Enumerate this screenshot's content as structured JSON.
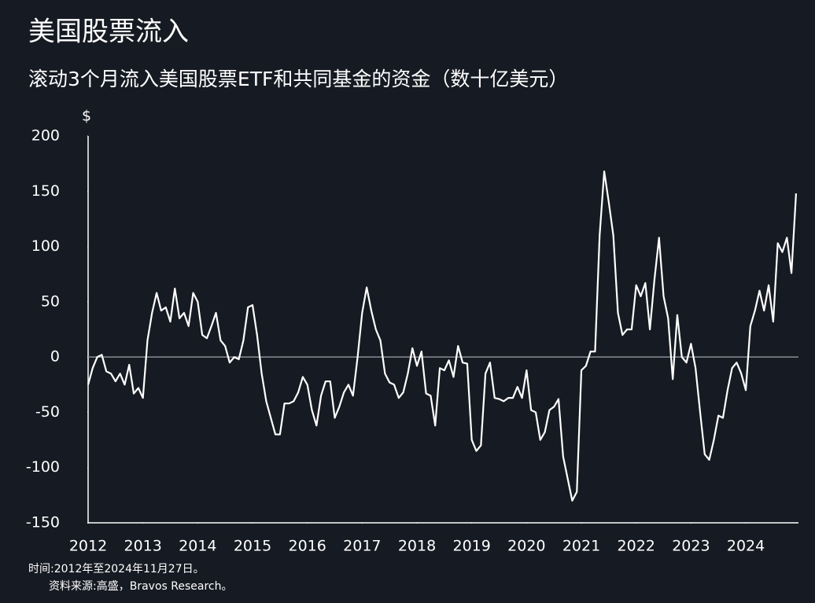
{
  "chart_data": {
    "type": "line",
    "title": "美国股票流入",
    "subtitle": "滚动3个月流入美国股票ETF和共同基金的资金（数十亿美元）",
    "y_label": "$",
    "notes": [
      "时间:2012年至2024年11月27日。",
      "资料来源:高盛，Bravos Research。"
    ],
    "xlim": [
      2012,
      2024.95
    ],
    "xticks": [
      2012,
      2013,
      2014,
      2015,
      2016,
      2017,
      2018,
      2019,
      2020,
      2021,
      2022,
      2023,
      2024
    ],
    "ylim": [
      -150,
      200
    ],
    "yticks": [
      -150,
      -100,
      -50,
      0,
      50,
      100,
      150,
      200
    ],
    "zero_line": true,
    "series": [
      {
        "color": "#ffffff",
        "x": [
          2012,
          2012.083,
          2012.167,
          2012.25,
          2012.333,
          2012.417,
          2012.5,
          2012.583,
          2012.667,
          2012.75,
          2012.833,
          2012.917,
          2013,
          2013.083,
          2013.167,
          2013.25,
          2013.333,
          2013.417,
          2013.5,
          2013.583,
          2013.667,
          2013.75,
          2013.833,
          2013.917,
          2014,
          2014.083,
          2014.167,
          2014.25,
          2014.333,
          2014.417,
          2014.5,
          2014.583,
          2014.667,
          2014.75,
          2014.833,
          2014.917,
          2015,
          2015.083,
          2015.167,
          2015.25,
          2015.333,
          2015.417,
          2015.5,
          2015.583,
          2015.667,
          2015.75,
          2015.833,
          2015.917,
          2016,
          2016.083,
          2016.167,
          2016.25,
          2016.333,
          2016.417,
          2016.5,
          2016.583,
          2016.667,
          2016.75,
          2016.833,
          2016.917,
          2017,
          2017.083,
          2017.167,
          2017.25,
          2017.333,
          2017.417,
          2017.5,
          2017.583,
          2017.667,
          2017.75,
          2017.833,
          2017.917,
          2018,
          2018.083,
          2018.167,
          2018.25,
          2018.333,
          2018.417,
          2018.5,
          2018.583,
          2018.667,
          2018.75,
          2018.833,
          2018.917,
          2019,
          2019.083,
          2019.167,
          2019.25,
          2019.333,
          2019.417,
          2019.5,
          2019.583,
          2019.667,
          2019.75,
          2019.833,
          2019.917,
          2020,
          2020.083,
          2020.167,
          2020.25,
          2020.333,
          2020.417,
          2020.5,
          2020.583,
          2020.667,
          2020.75,
          2020.833,
          2020.917,
          2021,
          2021.083,
          2021.167,
          2021.25,
          2021.333,
          2021.417,
          2021.5,
          2021.583,
          2021.667,
          2021.75,
          2021.833,
          2021.917,
          2022,
          2022.083,
          2022.167,
          2022.25,
          2022.333,
          2022.417,
          2022.5,
          2022.583,
          2022.667,
          2022.75,
          2022.833,
          2022.917,
          2023,
          2023.083,
          2023.167,
          2023.25,
          2023.333,
          2023.417,
          2023.5,
          2023.583,
          2023.667,
          2023.75,
          2023.833,
          2023.917,
          2024,
          2024.083,
          2024.167,
          2024.25,
          2024.333,
          2024.417,
          2024.5,
          2024.583,
          2024.667,
          2024.75,
          2024.833,
          2024.917
        ],
        "values": [
          -25,
          -10,
          0,
          2,
          -13,
          -15,
          -22,
          -15,
          -25,
          -7,
          -33,
          -28,
          -37,
          15,
          40,
          58,
          42,
          45,
          32,
          62,
          35,
          40,
          28,
          58,
          50,
          20,
          17,
          28,
          40,
          15,
          10,
          -5,
          0,
          -2,
          15,
          45,
          47,
          20,
          -15,
          -40,
          -55,
          -70,
          -70,
          -42,
          -42,
          -40,
          -32,
          -18,
          -25,
          -48,
          -62,
          -35,
          -22,
          -22,
          -55,
          -45,
          -32,
          -25,
          -35,
          0,
          40,
          63,
          42,
          25,
          15,
          -15,
          -23,
          -25,
          -37,
          -32,
          -15,
          8,
          -8,
          5,
          -33,
          -35,
          -62,
          -10,
          -12,
          -3,
          -18,
          10,
          -5,
          -6,
          -75,
          -85,
          -80,
          -15,
          -5,
          -37,
          -38,
          -40,
          -37,
          -37,
          -27,
          -37,
          -12,
          -48,
          -50,
          -75,
          -68,
          -48,
          -45,
          -38,
          -90,
          -110,
          -130,
          -122,
          -12,
          -8,
          5,
          5,
          110,
          168,
          140,
          110,
          40,
          20,
          25,
          25,
          65,
          55,
          67,
          25,
          70,
          108,
          55,
          35,
          -20,
          38,
          0,
          -5,
          12,
          -10,
          -50,
          -88,
          -93,
          -75,
          -53,
          -55,
          -30,
          -10,
          -5,
          -15,
          -30,
          28,
          42,
          60,
          42,
          65,
          32,
          103,
          95,
          108,
          76,
          148
        ]
      }
    ]
  }
}
